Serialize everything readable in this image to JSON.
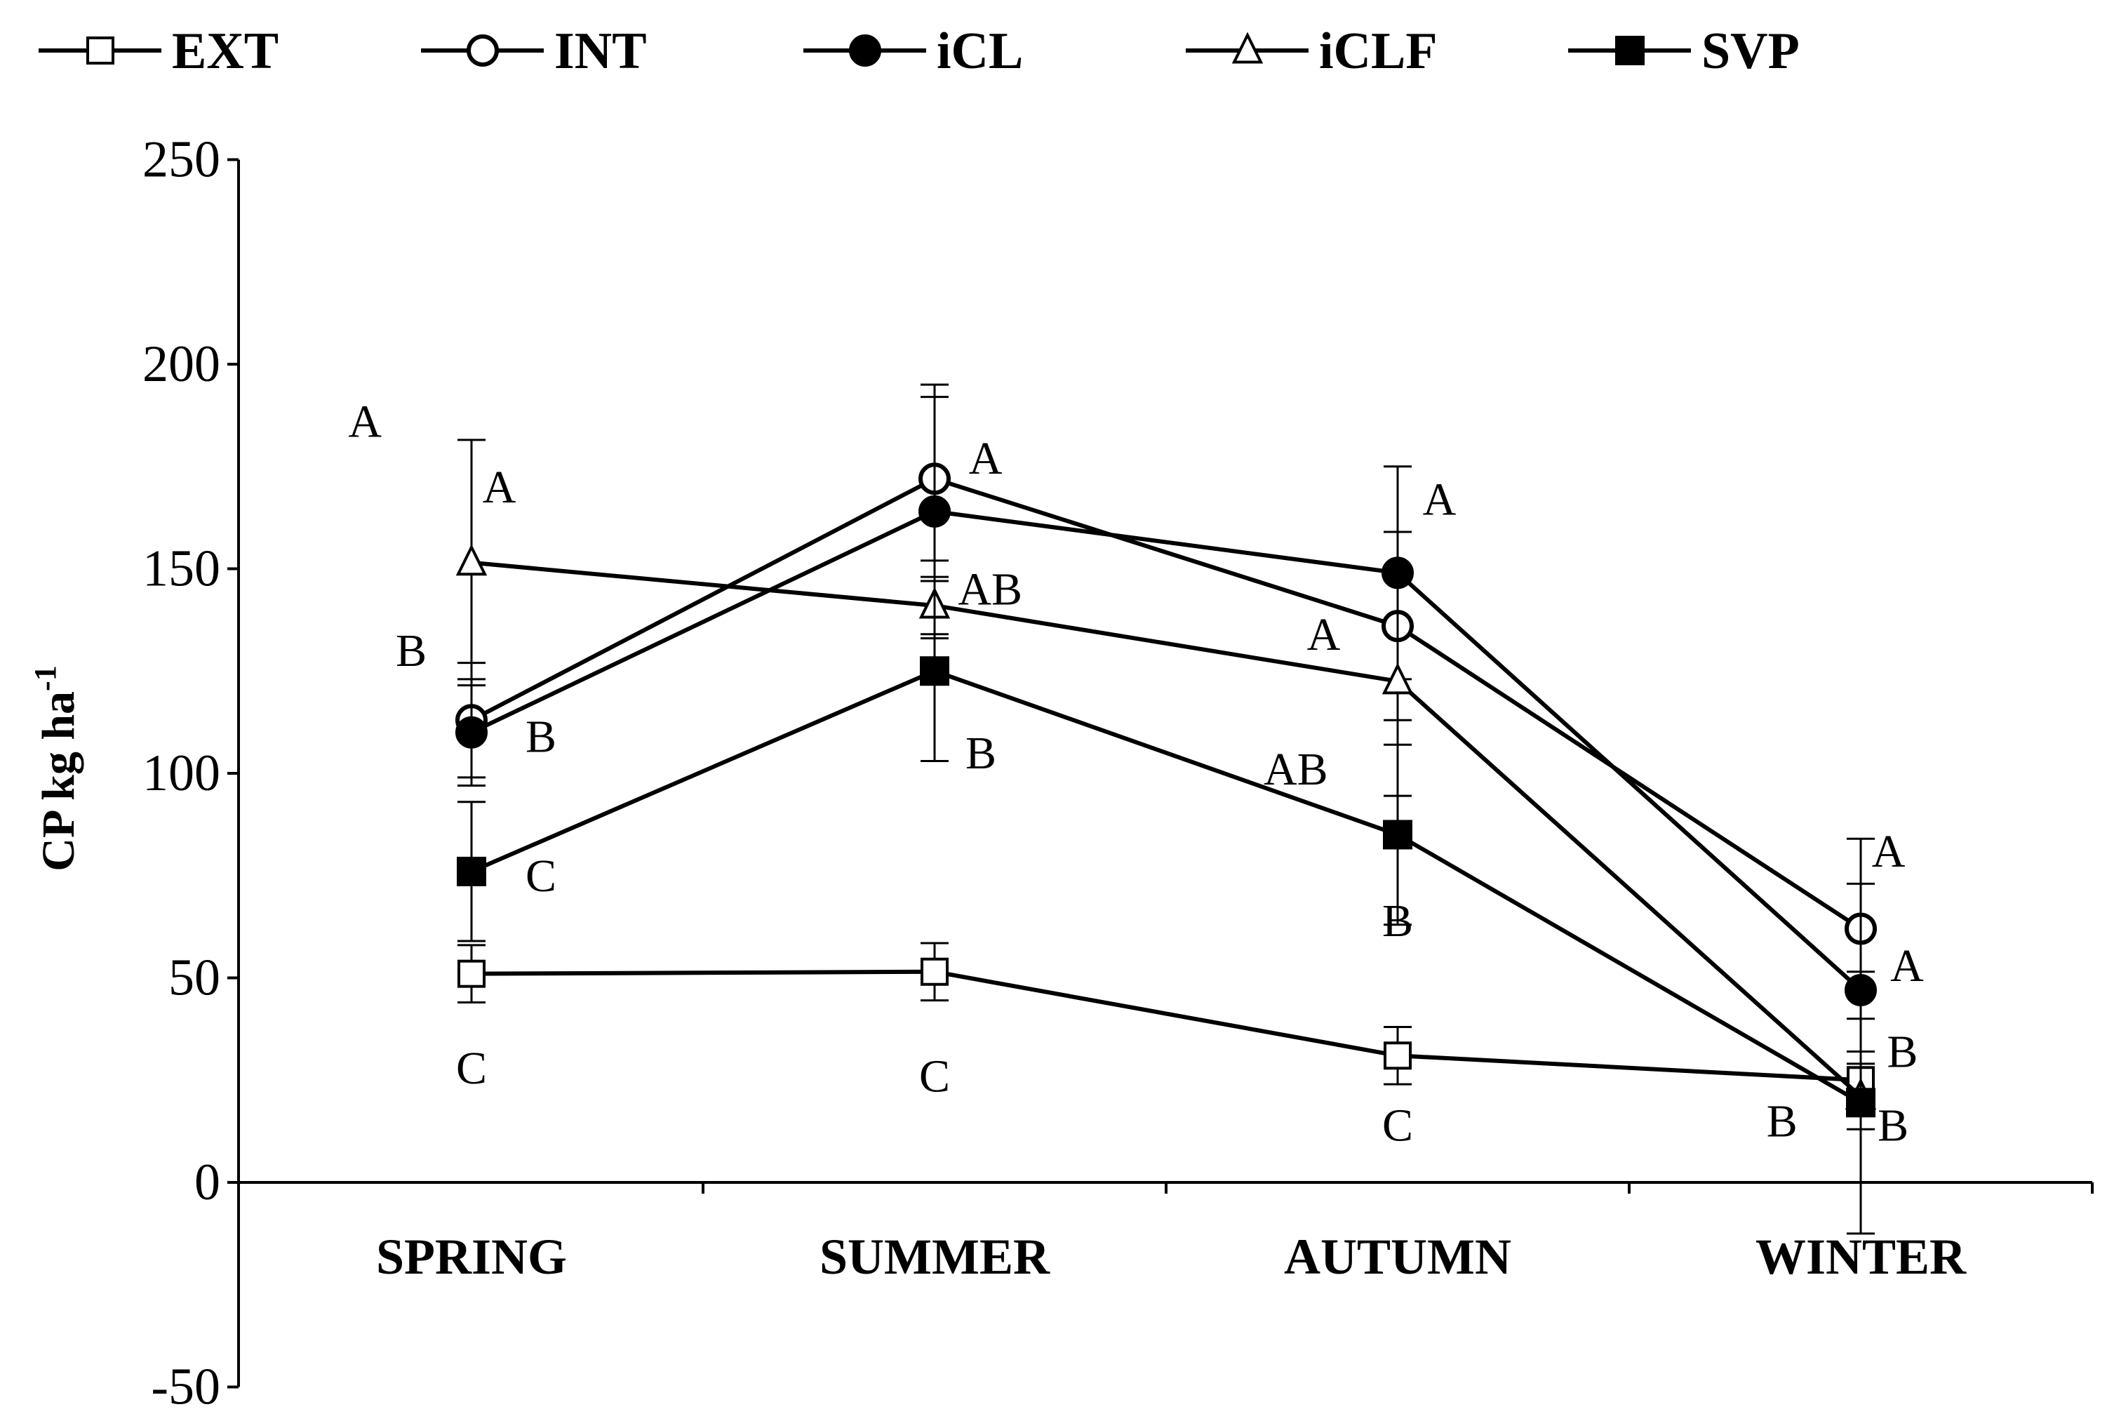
{
  "chart_data": {
    "type": "line",
    "title": "",
    "xlabel": "",
    "ylabel": "CP kg ha",
    "ylabel_superscript": "-1",
    "ylim": [
      -50,
      250
    ],
    "yticks": [
      -50,
      0,
      50,
      100,
      150,
      200,
      250
    ],
    "yticklabels": [
      "-50",
      "0",
      "50",
      "100",
      "150",
      "200",
      "250"
    ],
    "categories": [
      "SPRING",
      "SUMMER",
      "AUTUMN",
      "WINTER"
    ],
    "legend_position": "top",
    "series": [
      {
        "name": "EXT",
        "marker": "open-square",
        "values": [
          51,
          51.5,
          31,
          25
        ],
        "error": [
          7,
          7,
          7,
          7
        ],
        "labels": [
          {
            "text": "C",
            "x": 0,
            "y": 28
          },
          {
            "text": "C",
            "x": 1,
            "y": 26
          },
          {
            "text": "C",
            "x": 2,
            "y": 14
          },
          {
            "text": "B",
            "x": 3.09,
            "y": 32
          }
        ]
      },
      {
        "name": "INT",
        "marker": "open-circle",
        "values": [
          113,
          172,
          136,
          62
        ],
        "error": [
          14,
          20,
          23,
          22
        ],
        "labels": [
          {
            "text": "B",
            "x": 0.15,
            "y": 109
          },
          {
            "text": "A",
            "x": 1.11,
            "y": 177
          },
          {
            "text": "A",
            "x": 1.84,
            "y": 134
          },
          {
            "text": "A",
            "x": 3.06,
            "y": 81
          }
        ]
      },
      {
        "name": "iCL",
        "marker": "filled-circle",
        "values": [
          110,
          164,
          149,
          47
        ],
        "error": [
          13,
          31,
          26,
          26
        ],
        "labels": [
          {
            "text": "B",
            "x": -0.13,
            "y": 130
          },
          {
            "text": "A",
            "x": -0.23,
            "y": 186
          },
          {
            "text": "A",
            "x": 2.09,
            "y": 167
          },
          {
            "text": "A",
            "x": 3.1,
            "y": 53
          }
        ]
      },
      {
        "name": "iCLF",
        "marker": "open-triangle",
        "values": [
          151.5,
          141,
          122.5,
          21
        ],
        "error": [
          30,
          7,
          28,
          8
        ],
        "labels": [
          {
            "text": "A",
            "x": 0.06,
            "y": 170
          },
          {
            "text": "AB",
            "x": 1.12,
            "y": 145
          },
          {
            "text": "AB",
            "x": 1.78,
            "y": 101
          },
          {
            "text": "B",
            "x": 3.07,
            "y": 14
          }
        ]
      },
      {
        "name": "SVP",
        "marker": "filled-square",
        "values": [
          76,
          125,
          85,
          19.5
        ],
        "error": [
          17,
          22,
          22,
          32
        ],
        "labels": [
          {
            "text": "C",
            "x": 0.15,
            "y": 75
          },
          {
            "text": "B",
            "x": 1.1,
            "y": 105
          },
          {
            "text": "B",
            "x": 2.0,
            "y": 64
          },
          {
            "text": "B",
            "x": 2.83,
            "y": 15
          }
        ]
      }
    ]
  }
}
